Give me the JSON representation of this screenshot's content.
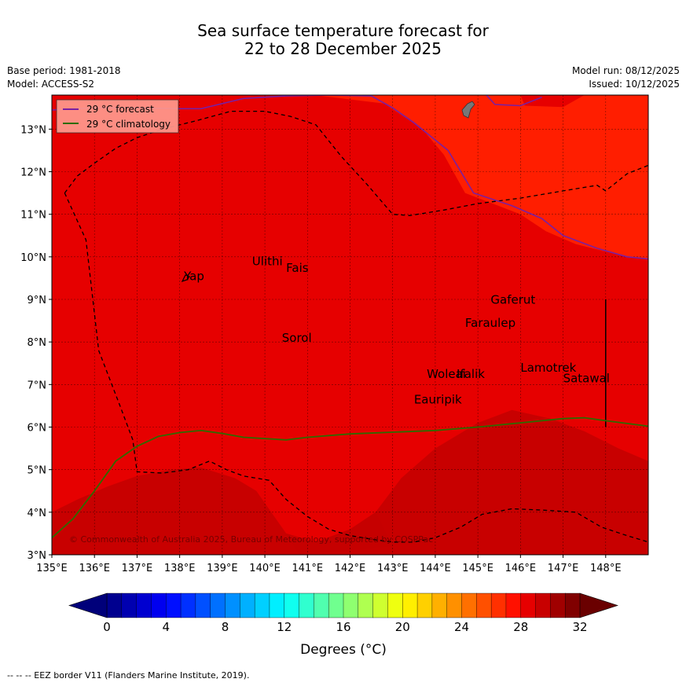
{
  "title_line1": "Sea surface temperature forecast for",
  "title_line2": "22 to 28 December 2025",
  "base_period": "Base period: 1981-2018",
  "model": "Model: ACCESS-S2",
  "model_run": "Model run: 08/12/2025",
  "issued": "Issued: 10/12/2025",
  "map": {
    "lon_range": [
      135,
      149
    ],
    "lat_range": [
      3,
      13.8
    ],
    "lon_ticks": [
      "135°E",
      "136°E",
      "137°E",
      "138°E",
      "139°E",
      "140°E",
      "141°E",
      "142°E",
      "143°E",
      "144°E",
      "145°E",
      "146°E",
      "147°E",
      "148°E"
    ],
    "lat_ticks": [
      "3°N",
      "4°N",
      "5°N",
      "6°N",
      "7°N",
      "8°N",
      "9°N",
      "10°N",
      "11°N",
      "12°N",
      "13°N"
    ],
    "colors": {
      "warm_29_30": "#e60000",
      "warm_30_31": "#c80000",
      "warm_28_29": "#ff1e00",
      "forecast_line": "#7a1fa2",
      "climatology_line": "#2e6b00",
      "land": "#777777"
    },
    "places": [
      {
        "name": "Yap",
        "lon": 138.1,
        "lat": 9.45
      },
      {
        "name": "Ulithi",
        "lon": 139.7,
        "lat": 9.8
      },
      {
        "name": "Fais",
        "lon": 140.5,
        "lat": 9.65
      },
      {
        "name": "Sorol",
        "lon": 140.4,
        "lat": 8.0
      },
      {
        "name": "Gaferut",
        "lon": 145.3,
        "lat": 8.9
      },
      {
        "name": "Faraulep",
        "lon": 144.7,
        "lat": 8.35
      },
      {
        "name": "Woleai",
        "lon": 143.8,
        "lat": 7.15
      },
      {
        "name": "Ifalik",
        "lon": 144.5,
        "lat": 7.15
      },
      {
        "name": "Lamotrek",
        "lon": 146.0,
        "lat": 7.3
      },
      {
        "name": "Satawal",
        "lon": 147.0,
        "lat": 7.05
      },
      {
        "name": "Eauripik",
        "lon": 143.5,
        "lat": 6.55
      }
    ],
    "legend": {
      "forecast": "29 °C  forecast",
      "climatology": "29 °C  climatology"
    },
    "copyright": "© Commonwealth of Australia 2025, Bureau of Meteorology, supported by COSPPac"
  },
  "colorbar": {
    "ticks": [
      "0",
      "4",
      "8",
      "12",
      "16",
      "20",
      "24",
      "28",
      "32"
    ],
    "label": "Degrees (°C)",
    "colors": [
      "#00008f",
      "#0000b0",
      "#0000d0",
      "#0000ef",
      "#000fff",
      "#0030ff",
      "#0050ff",
      "#0070ff",
      "#0090ff",
      "#00b0ff",
      "#00d0ff",
      "#00efff",
      "#10ffef",
      "#30ffcf",
      "#50ffaf",
      "#70ff8f",
      "#8fff70",
      "#afff50",
      "#cfff30",
      "#efff10",
      "#ffef00",
      "#ffd000",
      "#ffb000",
      "#ff9000",
      "#ff7000",
      "#ff5000",
      "#ff3000",
      "#ff1000",
      "#e60000",
      "#c80000",
      "#a00000",
      "#800000"
    ]
  },
  "footnote": "-- -- -- EEZ border V11 (Flanders Marine Institute, 2019)."
}
